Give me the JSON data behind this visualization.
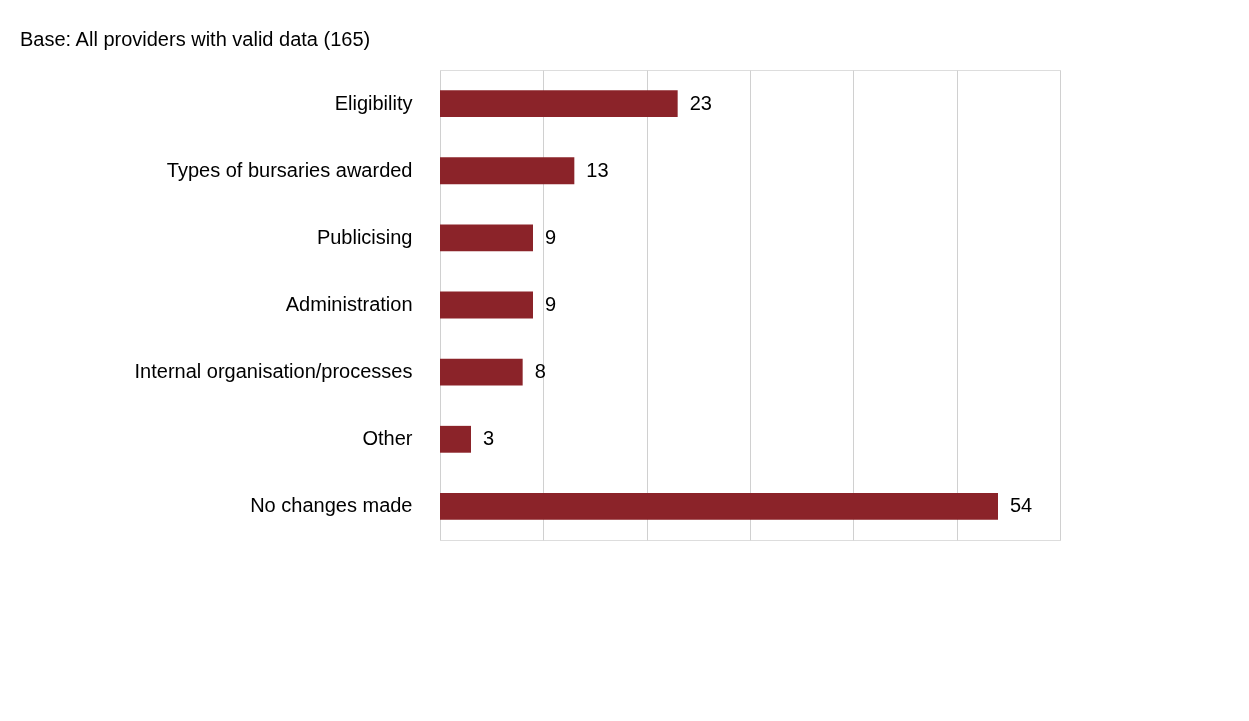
{
  "chart_data": {
    "type": "bar",
    "orientation": "horizontal",
    "title": "Base: All providers with valid data (165)",
    "categories": [
      "Eligibility",
      "Types of bursaries awarded",
      "Publicising",
      "Administration",
      "Internal organisation/processes",
      "Other",
      "No changes made"
    ],
    "values": [
      23,
      13,
      9,
      9,
      8,
      3,
      54
    ],
    "color": "#8b2329",
    "xlim": [
      0,
      60
    ],
    "xticks": [
      {
        "value": 0,
        "label": null
      },
      {
        "value": 10,
        "label": null
      },
      {
        "value": 20,
        "label": null
      },
      {
        "value": 30,
        "label": null
      },
      {
        "value": 40,
        "label": null
      },
      {
        "value": 50,
        "label": null
      },
      {
        "value": 60,
        "label": null
      }
    ],
    "grid": "x",
    "tick_labels": "y",
    "data_labels": true
  }
}
